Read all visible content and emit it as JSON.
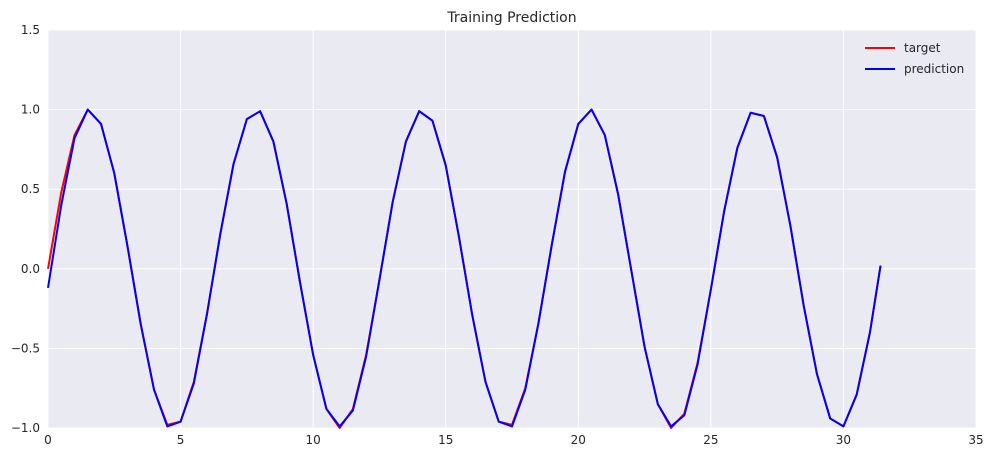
{
  "chart_data": {
    "type": "line",
    "title": "Training Prediction",
    "xlabel": "",
    "ylabel": "",
    "xlim": [
      0,
      35
    ],
    "ylim": [
      -1.0,
      1.5
    ],
    "x_ticks": [
      0,
      5,
      10,
      15,
      20,
      25,
      30,
      35
    ],
    "y_ticks": [
      -1.0,
      -0.5,
      0.0,
      0.5,
      1.0,
      1.5
    ],
    "x_tick_labels": [
      "0",
      "5",
      "10",
      "15",
      "20",
      "25",
      "30",
      "35"
    ],
    "y_tick_labels": [
      "−1.0",
      "−0.5",
      "0.0",
      "0.5",
      "1.0",
      "1.5"
    ],
    "grid": true,
    "legend_position": "top-right",
    "background_color": "#EAEAF2",
    "grid_color": "#FFFFFF",
    "series": [
      {
        "name": "target",
        "color": "#FF0000",
        "x": [
          0.0,
          0.5,
          1.0,
          1.5,
          2.0,
          2.5,
          3.0,
          3.5,
          4.0,
          4.5,
          5.0,
          5.5,
          6.0,
          6.5,
          7.0,
          7.5,
          8.0,
          8.5,
          9.0,
          9.5,
          10.0,
          10.5,
          11.0,
          11.5,
          12.0,
          12.5,
          13.0,
          13.5,
          14.0,
          14.5,
          15.0,
          15.5,
          16.0,
          16.5,
          17.0,
          17.5,
          18.0,
          18.5,
          19.0,
          19.5,
          20.0,
          20.5,
          21.0,
          21.5,
          22.0,
          22.5,
          23.0,
          23.5,
          24.0,
          24.5,
          25.0,
          25.5,
          26.0,
          26.5,
          27.0,
          27.5,
          28.0,
          28.5,
          29.0,
          29.5,
          30.0,
          30.5,
          31.0,
          31.4
        ],
        "y": [
          0.0,
          0.48,
          0.84,
          1.0,
          0.91,
          0.6,
          0.14,
          -0.35,
          -0.76,
          -0.98,
          -0.96,
          -0.71,
          -0.28,
          0.22,
          0.66,
          0.94,
          0.99,
          0.8,
          0.41,
          -0.08,
          -0.54,
          -0.88,
          -1.0,
          -0.88,
          -0.54,
          -0.07,
          0.42,
          0.8,
          0.99,
          0.93,
          0.65,
          0.2,
          -0.29,
          -0.71,
          -0.96,
          -0.98,
          -0.75,
          -0.34,
          0.15,
          0.61,
          0.91,
          1.0,
          0.84,
          0.47,
          -0.01,
          -0.49,
          -0.85,
          -1.0,
          -0.91,
          -0.59,
          -0.13,
          0.36,
          0.76,
          0.98,
          0.96,
          0.7,
          0.27,
          -0.23,
          -0.66,
          -0.94,
          -0.99,
          -0.79,
          -0.4,
          0.02
        ]
      },
      {
        "name": "prediction",
        "color": "#0000FF",
        "x": [
          0.0,
          0.5,
          1.0,
          1.5,
          2.0,
          2.5,
          3.0,
          3.5,
          4.0,
          4.5,
          5.0,
          5.5,
          6.0,
          6.5,
          7.0,
          7.5,
          8.0,
          8.5,
          9.0,
          9.5,
          10.0,
          10.5,
          11.0,
          11.5,
          12.0,
          12.5,
          13.0,
          13.5,
          14.0,
          14.5,
          15.0,
          15.5,
          16.0,
          16.5,
          17.0,
          17.5,
          18.0,
          18.5,
          19.0,
          19.5,
          20.0,
          20.5,
          21.0,
          21.5,
          22.0,
          22.5,
          23.0,
          23.5,
          24.0,
          24.5,
          25.0,
          25.5,
          26.0,
          26.5,
          27.0,
          27.5,
          28.0,
          28.5,
          29.0,
          29.5,
          30.0,
          30.5,
          31.0,
          31.4
        ],
        "y": [
          -0.12,
          0.4,
          0.82,
          1.0,
          0.91,
          0.6,
          0.14,
          -0.35,
          -0.76,
          -0.99,
          -0.96,
          -0.72,
          -0.28,
          0.22,
          0.66,
          0.94,
          0.99,
          0.8,
          0.41,
          -0.08,
          -0.54,
          -0.88,
          -0.99,
          -0.89,
          -0.55,
          -0.07,
          0.42,
          0.8,
          0.99,
          0.93,
          0.65,
          0.2,
          -0.29,
          -0.71,
          -0.96,
          -0.99,
          -0.76,
          -0.34,
          0.15,
          0.61,
          0.91,
          1.0,
          0.84,
          0.47,
          -0.01,
          -0.49,
          -0.85,
          -0.99,
          -0.92,
          -0.6,
          -0.13,
          0.36,
          0.76,
          0.98,
          0.96,
          0.7,
          0.27,
          -0.23,
          -0.66,
          -0.94,
          -0.99,
          -0.79,
          -0.4,
          0.02
        ]
      }
    ]
  }
}
